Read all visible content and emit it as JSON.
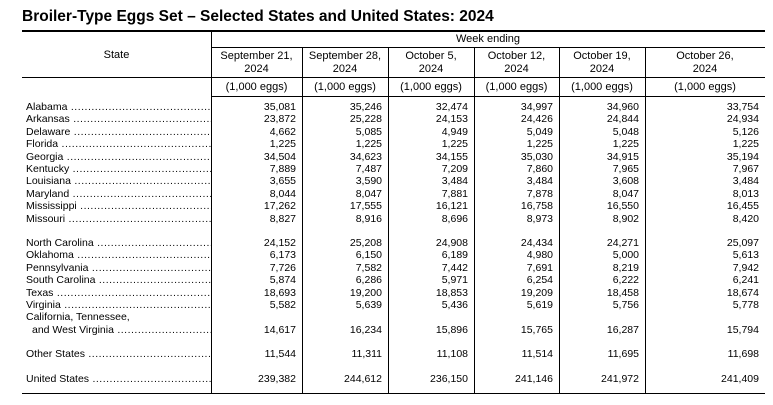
{
  "title": "Broiler-Type Eggs Set – Selected States and United States: 2024",
  "header": {
    "state_label": "State",
    "week_label": "Week ending",
    "columns": [
      {
        "line1": "September 21,",
        "line2": "2024",
        "unit": "(1,000 eggs)"
      },
      {
        "line1": "September 28,",
        "line2": "2024",
        "unit": "(1,000 eggs)"
      },
      {
        "line1": "October 5,",
        "line2": "2024",
        "unit": "(1,000 eggs)"
      },
      {
        "line1": "October 12,",
        "line2": "2024",
        "unit": "(1,000 eggs)"
      },
      {
        "line1": "October 19,",
        "line2": "2024",
        "unit": "(1,000 eggs)"
      },
      {
        "line1": "October 26,",
        "line2": "2024",
        "unit": "(1,000 eggs)"
      }
    ]
  },
  "rows": [
    {
      "state": "Alabama",
      "values": [
        "35,081",
        "35,246",
        "32,474",
        "34,997",
        "34,960",
        "33,754"
      ]
    },
    {
      "state": "Arkansas",
      "values": [
        "23,872",
        "25,228",
        "24,153",
        "24,426",
        "24,844",
        "24,934"
      ]
    },
    {
      "state": "Delaware",
      "values": [
        "4,662",
        "5,085",
        "4,949",
        "5,049",
        "5,048",
        "5,126"
      ]
    },
    {
      "state": "Florida",
      "values": [
        "1,225",
        "1,225",
        "1,225",
        "1,225",
        "1,225",
        "1,225"
      ]
    },
    {
      "state": "Georgia",
      "values": [
        "34,504",
        "34,623",
        "34,155",
        "35,030",
        "34,915",
        "35,194"
      ]
    },
    {
      "state": "Kentucky",
      "values": [
        "7,889",
        "7,487",
        "7,209",
        "7,860",
        "7,965",
        "7,967"
      ]
    },
    {
      "state": "Louisiana",
      "values": [
        "3,655",
        "3,590",
        "3,484",
        "3,484",
        "3,608",
        "3,484"
      ]
    },
    {
      "state": "Maryland",
      "values": [
        "8,044",
        "8,047",
        "7,881",
        "7,878",
        "8,047",
        "8,013"
      ]
    },
    {
      "state": "Mississippi",
      "values": [
        "17,262",
        "17,555",
        "16,121",
        "16,758",
        "16,550",
        "16,455"
      ]
    },
    {
      "state": "Missouri",
      "values": [
        "8,827",
        "8,916",
        "8,696",
        "8,973",
        "8,902",
        "8,420"
      ]
    },
    {
      "state": "North Carolina",
      "values": [
        "24,152",
        "25,208",
        "24,908",
        "24,434",
        "24,271",
        "25,097"
      ]
    },
    {
      "state": "Oklahoma",
      "values": [
        "6,173",
        "6,150",
        "6,189",
        "4,980",
        "5,000",
        "5,613"
      ]
    },
    {
      "state": "Pennsylvania",
      "values": [
        "7,726",
        "7,582",
        "7,442",
        "7,691",
        "8,219",
        "7,942"
      ]
    },
    {
      "state": "South Carolina",
      "values": [
        "5,874",
        "6,286",
        "5,971",
        "6,254",
        "6,222",
        "6,241"
      ]
    },
    {
      "state": "Texas",
      "values": [
        "18,693",
        "19,200",
        "18,853",
        "19,209",
        "18,458",
        "18,674"
      ]
    },
    {
      "state": "Virginia",
      "values": [
        "5,582",
        "5,639",
        "5,436",
        "5,619",
        "5,756",
        "5,778"
      ]
    },
    {
      "state": "California, Tennessee,",
      "values": []
    },
    {
      "state": "and West Virginia",
      "values": [
        "14,617",
        "16,234",
        "15,896",
        "15,765",
        "16,287",
        "15,794"
      ]
    },
    {
      "state": "Other States",
      "values": [
        "11,544",
        "11,311",
        "11,108",
        "11,514",
        "11,695",
        "11,698"
      ]
    },
    {
      "state": "United States",
      "values": [
        "239,382",
        "244,612",
        "236,150",
        "241,146",
        "241,972",
        "241,409"
      ]
    }
  ]
}
